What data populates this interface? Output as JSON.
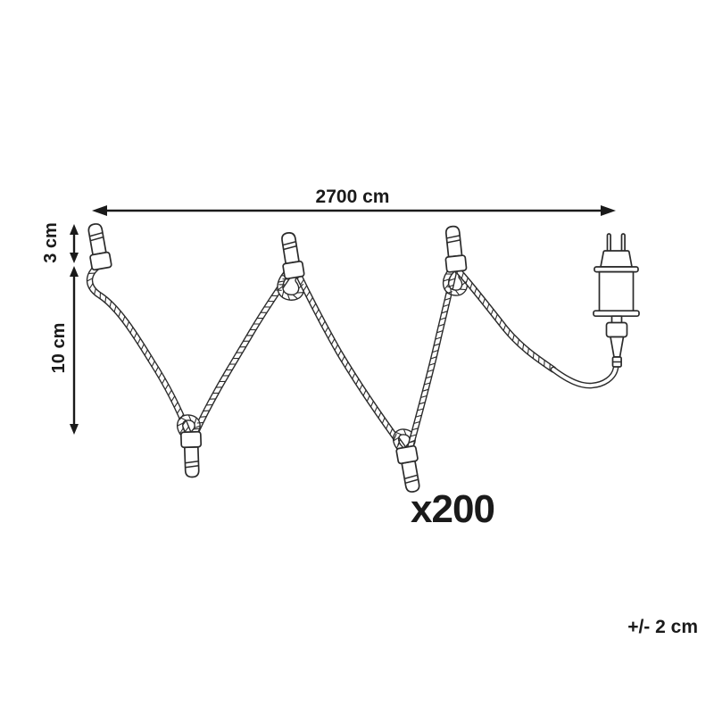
{
  "labels": {
    "total_length": "2700 cm",
    "bulb_height": "3 cm",
    "bulb_spacing": "10 cm",
    "bulb_count": "x200",
    "tolerance": "+/- 2 cm"
  },
  "figure": {
    "kind": "string-lights dimension diagram",
    "icons": [
      "light-bulb-icon",
      "power-plug-icon",
      "double-arrow-icon"
    ],
    "colors": {
      "line": "#2b2b2b",
      "text": "#1a1a1a",
      "background": "#ffffff"
    }
  }
}
